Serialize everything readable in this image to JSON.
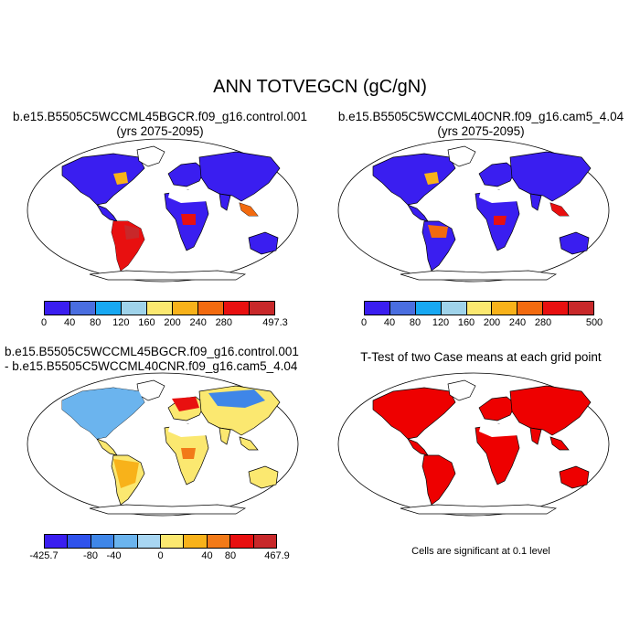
{
  "main_title": "ANN TOTVEGCN (gC/gN)",
  "panels": [
    {
      "title_line1": "b.e15.B5505C5WCCML45BGCR.f09_g16.control.001",
      "title_line2": "(yrs 2075-2095)",
      "colorbar": {
        "ticks": [
          "0",
          "40",
          "80",
          "120",
          "160",
          "200",
          "240",
          "280",
          "497.3"
        ],
        "colors": [
          "#3a1ef0",
          "#4a6ee0",
          "#17a8f2",
          "#9fd3ea",
          "#fbe870",
          "#f8b21a",
          "#f26a0f",
          "#e81010",
          "#c8282a"
        ]
      }
    },
    {
      "title_line1": "b.e15.B5505C5WCCML40CNR.f09_g16.cam5_4.04",
      "title_line2": "(yrs 2075-2095)",
      "colorbar": {
        "ticks": [
          "0",
          "40",
          "80",
          "120",
          "160",
          "200",
          "240",
          "280",
          "500"
        ],
        "colors": [
          "#3a1ef0",
          "#4a6ee0",
          "#17a8f2",
          "#9fd3ea",
          "#fbe870",
          "#f8b21a",
          "#f26a0f",
          "#e81010",
          "#c8282a"
        ]
      }
    },
    {
      "title_line1": "b.e15.B5505C5WCCML45BGCR.f09_g16.control.001",
      "title_line2": "- b.e15.B5505C5WCCML40CNR.f09_g16.cam5_4.04",
      "colorbar": {
        "ticks": [
          "-425.7",
          "-80",
          "-40",
          "0",
          "40",
          "80",
          "467.9"
        ],
        "colors": [
          "#3a1ef0",
          "#2f52ec",
          "#3f86e8",
          "#6bb4ee",
          "#a8d6f2",
          "#fbe870",
          "#f8b21a",
          "#f27a18",
          "#e81010",
          "#c8282a"
        ]
      }
    },
    {
      "title_line1": "T-Test of two Case means at each grid point",
      "note": "Cells are significant at 0.1 level",
      "fill_color": "#ee0000"
    }
  ]
}
